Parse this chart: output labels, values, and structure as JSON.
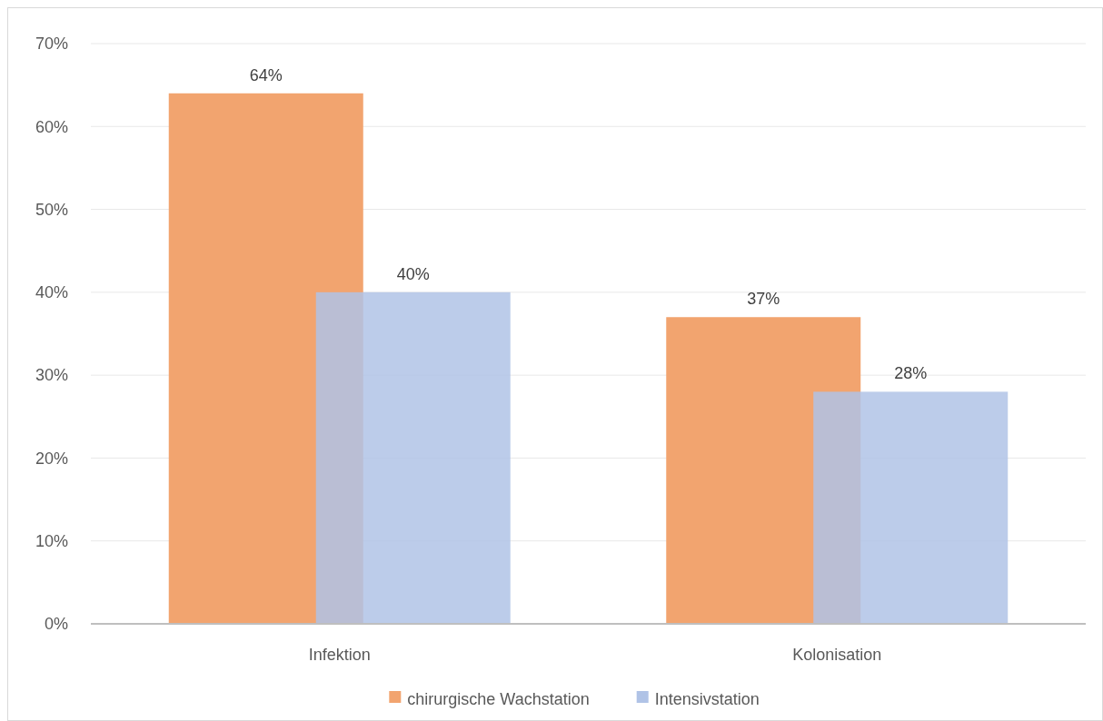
{
  "chart_data": {
    "type": "bar",
    "categories": [
      "Infektion",
      "Kolonisation"
    ],
    "series": [
      {
        "name": "chirurgische Wachstation",
        "color": "#f2a46f",
        "values": [
          64,
          37
        ]
      },
      {
        "name": "Intensivstation",
        "color": "#b0c3e6",
        "values": [
          40,
          28
        ]
      }
    ],
    "ylim": [
      0,
      70
    ],
    "yticks": [
      {
        "value": 0,
        "label": "0%"
      },
      {
        "value": 10,
        "label": "10%"
      },
      {
        "value": 20,
        "label": "20%"
      },
      {
        "value": 30,
        "label": "30%"
      },
      {
        "value": 40,
        "label": "40%"
      },
      {
        "value": 50,
        "label": "50%"
      },
      {
        "value": 60,
        "label": "60%"
      },
      {
        "value": 70,
        "label": "70%"
      }
    ],
    "value_labels": [
      [
        "64%",
        "37%"
      ],
      [
        "40%",
        "28%"
      ]
    ],
    "grid": "y",
    "legend": "bottom"
  }
}
